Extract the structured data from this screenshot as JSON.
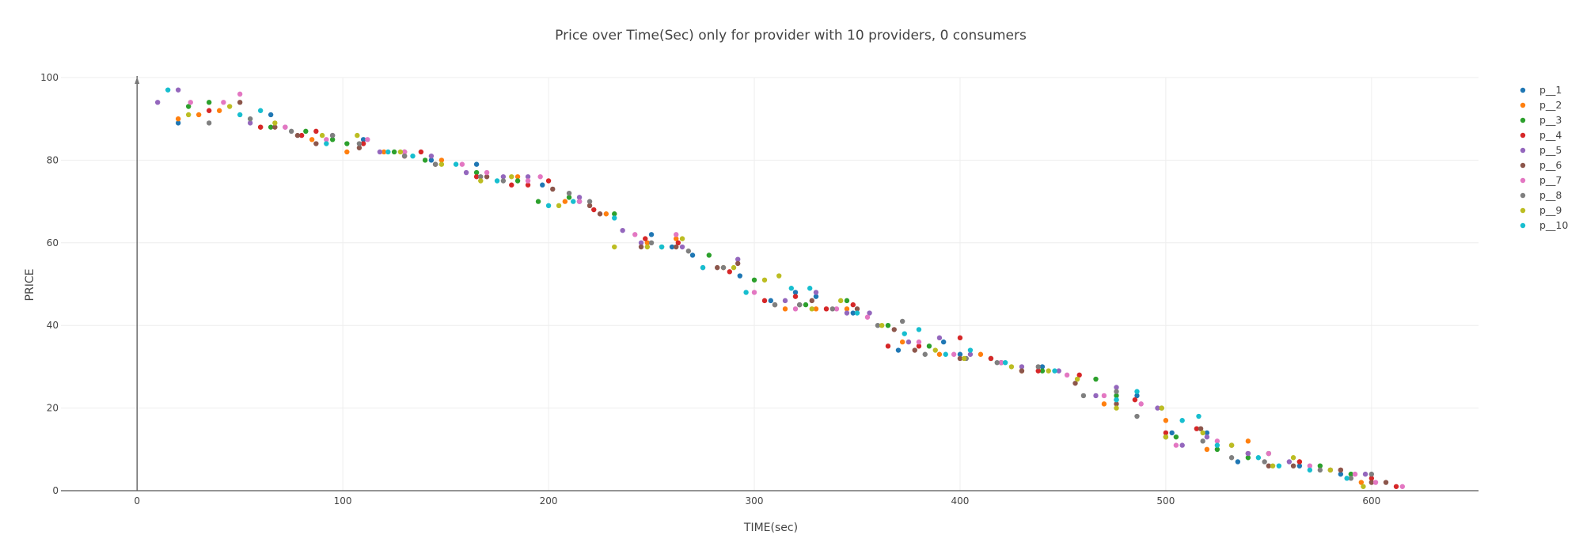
{
  "chart_data": {
    "type": "scatter",
    "title": "Price over Time(Sec) only for provider with 10 providers, 0 consumers",
    "xlabel": "TIME(sec)",
    "ylabel": "PRICE",
    "xlim": [
      -37,
      652
    ],
    "ylim": [
      0,
      100
    ],
    "x_ticks": [
      0,
      100,
      200,
      300,
      400,
      500,
      600
    ],
    "y_ticks": [
      0,
      20,
      40,
      60,
      80,
      100
    ],
    "grid": true,
    "legend_position": "right",
    "series": [
      {
        "name": "p__1",
        "color": "#1f77b4",
        "points": [
          [
            20,
            89
          ],
          [
            65,
            91
          ],
          [
            110,
            85
          ],
          [
            143,
            80
          ],
          [
            165,
            79
          ],
          [
            197,
            74
          ],
          [
            215,
            70
          ],
          [
            250,
            62
          ],
          [
            260,
            59
          ],
          [
            270,
            57
          ],
          [
            293,
            52
          ],
          [
            308,
            46
          ],
          [
            320,
            48
          ],
          [
            330,
            47
          ],
          [
            348,
            43
          ],
          [
            370,
            34
          ],
          [
            392,
            36
          ],
          [
            400,
            33
          ],
          [
            420,
            31
          ],
          [
            440,
            30
          ],
          [
            476,
            22
          ],
          [
            486,
            23
          ],
          [
            503,
            14
          ],
          [
            520,
            14
          ],
          [
            535,
            7
          ],
          [
            565,
            6
          ],
          [
            585,
            4
          ]
        ]
      },
      {
        "name": "p__2",
        "color": "#ff7f0e",
        "points": [
          [
            20,
            90
          ],
          [
            30,
            91
          ],
          [
            40,
            92
          ],
          [
            60,
            88
          ],
          [
            85,
            85
          ],
          [
            102,
            82
          ],
          [
            120,
            82
          ],
          [
            148,
            80
          ],
          [
            185,
            76
          ],
          [
            208,
            70
          ],
          [
            228,
            67
          ],
          [
            248,
            60
          ],
          [
            262,
            61
          ],
          [
            285,
            54
          ],
          [
            315,
            44
          ],
          [
            330,
            44
          ],
          [
            345,
            44
          ],
          [
            372,
            36
          ],
          [
            390,
            33
          ],
          [
            410,
            33
          ],
          [
            430,
            29
          ],
          [
            470,
            21
          ],
          [
            500,
            17
          ],
          [
            520,
            10
          ],
          [
            540,
            12
          ],
          [
            565,
            7
          ],
          [
            580,
            5
          ],
          [
            595,
            2
          ]
        ]
      },
      {
        "name": "p__3",
        "color": "#2ca02c",
        "points": [
          [
            25,
            93
          ],
          [
            35,
            94
          ],
          [
            65,
            88
          ],
          [
            82,
            87
          ],
          [
            95,
            85
          ],
          [
            102,
            84
          ],
          [
            125,
            82
          ],
          [
            140,
            80
          ],
          [
            165,
            77
          ],
          [
            185,
            75
          ],
          [
            195,
            70
          ],
          [
            210,
            71
          ],
          [
            232,
            67
          ],
          [
            255,
            59
          ],
          [
            278,
            57
          ],
          [
            300,
            51
          ],
          [
            325,
            45
          ],
          [
            345,
            46
          ],
          [
            365,
            40
          ],
          [
            385,
            35
          ],
          [
            415,
            32
          ],
          [
            440,
            29
          ],
          [
            466,
            27
          ],
          [
            476,
            23
          ],
          [
            505,
            13
          ],
          [
            525,
            10
          ],
          [
            540,
            8
          ],
          [
            550,
            9
          ],
          [
            575,
            6
          ],
          [
            590,
            4
          ]
        ]
      },
      {
        "name": "p__4",
        "color": "#d62728",
        "points": [
          [
            35,
            92
          ],
          [
            60,
            88
          ],
          [
            80,
            86
          ],
          [
            87,
            87
          ],
          [
            110,
            84
          ],
          [
            130,
            81
          ],
          [
            138,
            82
          ],
          [
            165,
            76
          ],
          [
            182,
            74
          ],
          [
            190,
            74
          ],
          [
            200,
            75
          ],
          [
            222,
            68
          ],
          [
            247,
            61
          ],
          [
            263,
            60
          ],
          [
            288,
            53
          ],
          [
            305,
            46
          ],
          [
            320,
            47
          ],
          [
            335,
            44
          ],
          [
            348,
            45
          ],
          [
            365,
            35
          ],
          [
            380,
            35
          ],
          [
            400,
            37
          ],
          [
            415,
            32
          ],
          [
            438,
            29
          ],
          [
            458,
            28
          ],
          [
            485,
            22
          ],
          [
            500,
            14
          ],
          [
            515,
            15
          ],
          [
            540,
            9
          ],
          [
            565,
            7
          ],
          [
            585,
            5
          ],
          [
            600,
            3
          ],
          [
            612,
            1
          ]
        ]
      },
      {
        "name": "p__5",
        "color": "#9467bd",
        "points": [
          [
            10,
            94
          ],
          [
            20,
            97
          ],
          [
            55,
            89
          ],
          [
            72,
            88
          ],
          [
            95,
            86
          ],
          [
            118,
            82
          ],
          [
            143,
            81
          ],
          [
            160,
            77
          ],
          [
            178,
            76
          ],
          [
            190,
            76
          ],
          [
            215,
            71
          ],
          [
            236,
            63
          ],
          [
            245,
            60
          ],
          [
            265,
            59
          ],
          [
            292,
            56
          ],
          [
            315,
            46
          ],
          [
            330,
            48
          ],
          [
            345,
            43
          ],
          [
            356,
            43
          ],
          [
            375,
            36
          ],
          [
            390,
            37
          ],
          [
            405,
            33
          ],
          [
            430,
            30
          ],
          [
            448,
            29
          ],
          [
            466,
            23
          ],
          [
            476,
            25
          ],
          [
            496,
            20
          ],
          [
            508,
            11
          ],
          [
            520,
            13
          ],
          [
            540,
            9
          ],
          [
            560,
            7
          ],
          [
            580,
            5
          ],
          [
            597,
            4
          ]
        ]
      },
      {
        "name": "p__6",
        "color": "#8c564b",
        "points": [
          [
            50,
            94
          ],
          [
            67,
            88
          ],
          [
            78,
            86
          ],
          [
            87,
            84
          ],
          [
            108,
            83
          ],
          [
            130,
            82
          ],
          [
            145,
            79
          ],
          [
            170,
            76
          ],
          [
            202,
            73
          ],
          [
            220,
            69
          ],
          [
            225,
            67
          ],
          [
            245,
            59
          ],
          [
            262,
            59
          ],
          [
            282,
            54
          ],
          [
            292,
            55
          ],
          [
            310,
            45
          ],
          [
            322,
            45
          ],
          [
            328,
            46
          ],
          [
            350,
            44
          ],
          [
            368,
            39
          ],
          [
            378,
            34
          ],
          [
            400,
            32
          ],
          [
            420,
            31
          ],
          [
            430,
            29
          ],
          [
            456,
            26
          ],
          [
            476,
            21
          ],
          [
            500,
            13
          ],
          [
            517,
            15
          ],
          [
            532,
            11
          ],
          [
            550,
            6
          ],
          [
            562,
            6
          ],
          [
            585,
            5
          ],
          [
            600,
            2
          ],
          [
            607,
            2
          ]
        ]
      },
      {
        "name": "p__7",
        "color": "#e377c2",
        "points": [
          [
            26,
            94
          ],
          [
            42,
            94
          ],
          [
            50,
            96
          ],
          [
            72,
            88
          ],
          [
            92,
            85
          ],
          [
            112,
            85
          ],
          [
            130,
            82
          ],
          [
            158,
            79
          ],
          [
            170,
            77
          ],
          [
            190,
            75
          ],
          [
            196,
            76
          ],
          [
            215,
            70
          ],
          [
            242,
            62
          ],
          [
            262,
            62
          ],
          [
            275,
            54
          ],
          [
            300,
            48
          ],
          [
            320,
            44
          ],
          [
            340,
            44
          ],
          [
            355,
            42
          ],
          [
            380,
            36
          ],
          [
            397,
            33
          ],
          [
            420,
            31
          ],
          [
            452,
            28
          ],
          [
            470,
            23
          ],
          [
            488,
            21
          ],
          [
            505,
            11
          ],
          [
            525,
            12
          ],
          [
            550,
            9
          ],
          [
            570,
            6
          ],
          [
            592,
            4
          ],
          [
            602,
            2
          ],
          [
            615,
            1
          ]
        ]
      },
      {
        "name": "p__8",
        "color": "#7f7f7f",
        "points": [
          [
            35,
            89
          ],
          [
            55,
            90
          ],
          [
            75,
            87
          ],
          [
            95,
            86
          ],
          [
            108,
            84
          ],
          [
            130,
            81
          ],
          [
            145,
            79
          ],
          [
            167,
            76
          ],
          [
            178,
            75
          ],
          [
            210,
            72
          ],
          [
            220,
            70
          ],
          [
            250,
            60
          ],
          [
            268,
            58
          ],
          [
            285,
            54
          ],
          [
            310,
            45
          ],
          [
            322,
            45
          ],
          [
            338,
            44
          ],
          [
            360,
            40
          ],
          [
            372,
            41
          ],
          [
            383,
            33
          ],
          [
            403,
            32
          ],
          [
            418,
            31
          ],
          [
            438,
            30
          ],
          [
            460,
            23
          ],
          [
            476,
            24
          ],
          [
            486,
            18
          ],
          [
            498,
            20
          ],
          [
            518,
            12
          ],
          [
            532,
            8
          ],
          [
            548,
            7
          ],
          [
            575,
            5
          ],
          [
            590,
            3
          ],
          [
            600,
            4
          ]
        ]
      },
      {
        "name": "p__9",
        "color": "#bcbd22",
        "points": [
          [
            25,
            91
          ],
          [
            45,
            93
          ],
          [
            67,
            89
          ],
          [
            90,
            86
          ],
          [
            107,
            86
          ],
          [
            128,
            82
          ],
          [
            148,
            79
          ],
          [
            167,
            75
          ],
          [
            182,
            76
          ],
          [
            205,
            69
          ],
          [
            232,
            59
          ],
          [
            248,
            59
          ],
          [
            265,
            61
          ],
          [
            290,
            54
          ],
          [
            305,
            51
          ],
          [
            312,
            52
          ],
          [
            328,
            44
          ],
          [
            342,
            46
          ],
          [
            362,
            40
          ],
          [
            388,
            34
          ],
          [
            402,
            32
          ],
          [
            425,
            30
          ],
          [
            443,
            29
          ],
          [
            457,
            27
          ],
          [
            476,
            20
          ],
          [
            498,
            20
          ],
          [
            500,
            13
          ],
          [
            518,
            14
          ],
          [
            532,
            11
          ],
          [
            552,
            6
          ],
          [
            562,
            8
          ],
          [
            580,
            5
          ],
          [
            596,
            1
          ]
        ]
      },
      {
        "name": "p__10",
        "color": "#17becf",
        "points": [
          [
            15,
            97
          ],
          [
            50,
            91
          ],
          [
            60,
            92
          ],
          [
            92,
            84
          ],
          [
            122,
            82
          ],
          [
            134,
            81
          ],
          [
            155,
            79
          ],
          [
            175,
            75
          ],
          [
            200,
            69
          ],
          [
            212,
            70
          ],
          [
            232,
            66
          ],
          [
            255,
            59
          ],
          [
            275,
            54
          ],
          [
            296,
            48
          ],
          [
            318,
            49
          ],
          [
            327,
            49
          ],
          [
            350,
            43
          ],
          [
            373,
            38
          ],
          [
            380,
            39
          ],
          [
            393,
            33
          ],
          [
            405,
            34
          ],
          [
            422,
            31
          ],
          [
            446,
            29
          ],
          [
            476,
            22
          ],
          [
            486,
            24
          ],
          [
            508,
            17
          ],
          [
            516,
            18
          ],
          [
            525,
            11
          ],
          [
            545,
            8
          ],
          [
            555,
            6
          ],
          [
            570,
            5
          ],
          [
            588,
            3
          ]
        ]
      }
    ]
  }
}
